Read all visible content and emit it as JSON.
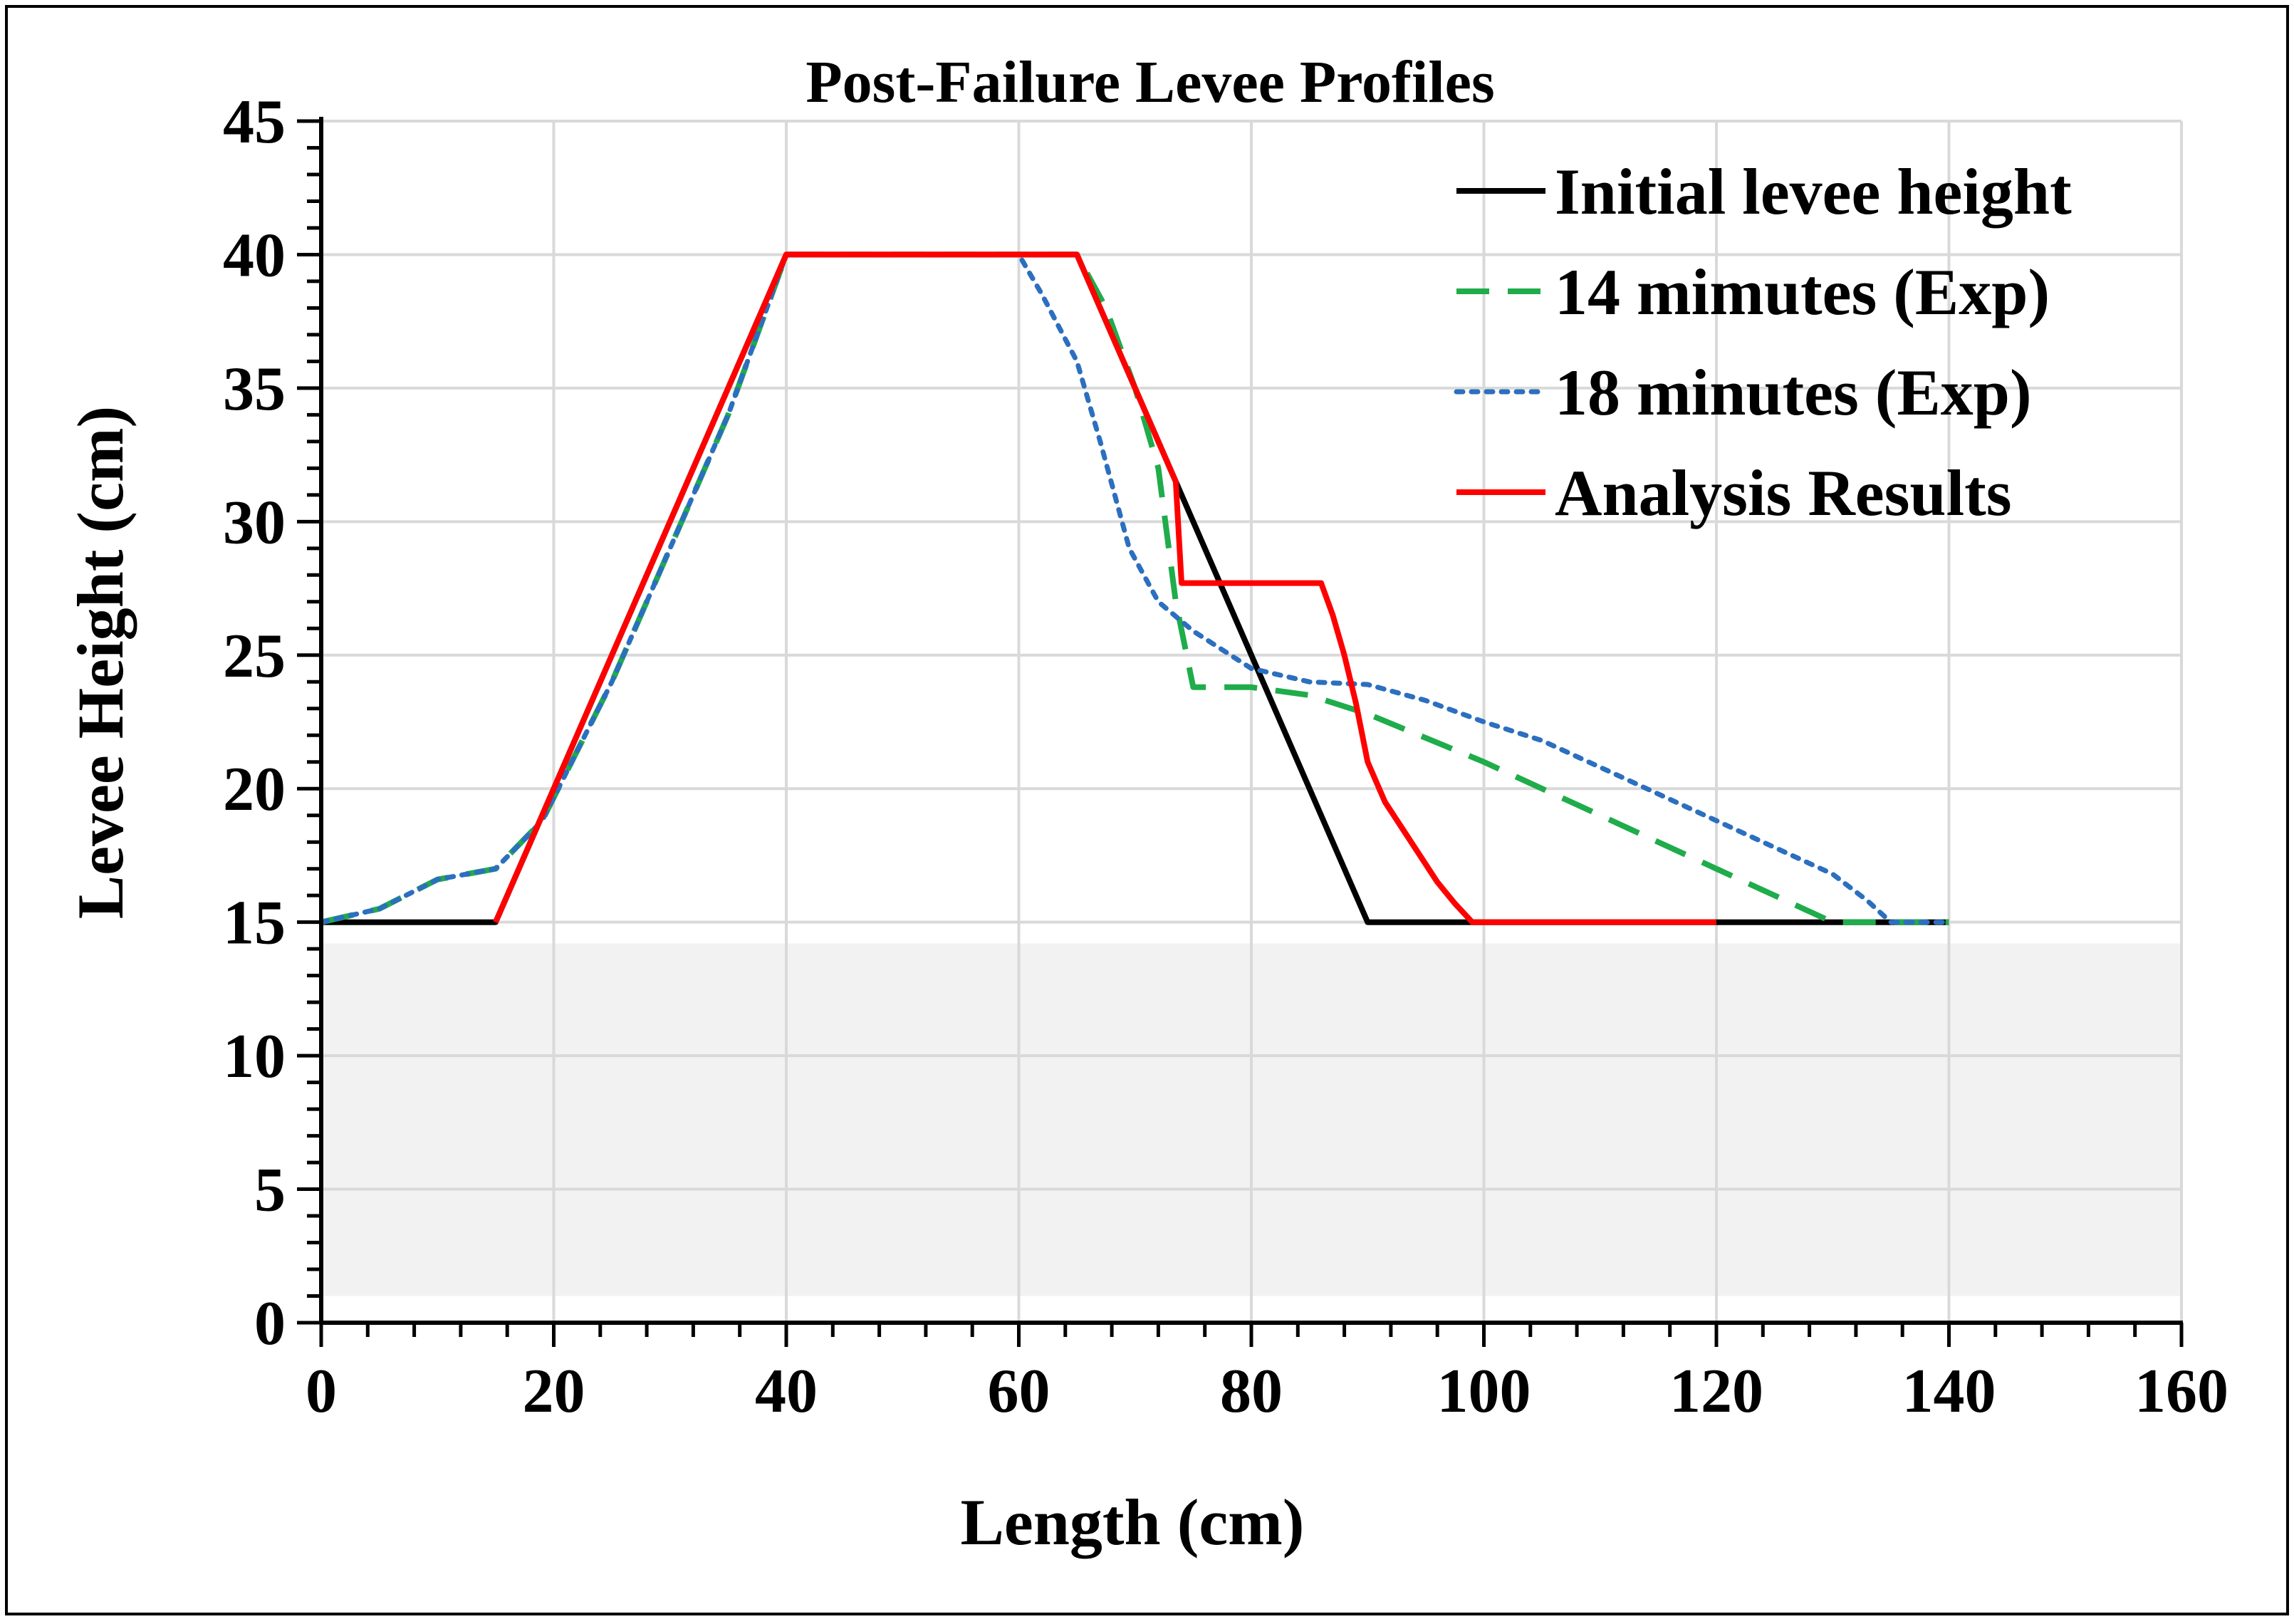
{
  "chart_data": {
    "type": "line",
    "title": "Post-Failure Levee Profiles",
    "xlabel": "Length (cm)",
    "ylabel": "Levee Height (cm)",
    "xlim": [
      0,
      160
    ],
    "ylim": [
      0,
      45
    ],
    "xticks": [
      0,
      20,
      40,
      60,
      80,
      100,
      120,
      140,
      160
    ],
    "yticks": [
      0,
      5,
      10,
      15,
      20,
      25,
      30,
      35,
      40,
      45
    ],
    "x_tick_labels": [
      "0",
      "20",
      "40",
      "60",
      "80",
      "100",
      "120",
      "140",
      "160"
    ],
    "y_tick_labels": [
      "0",
      "5",
      "10",
      "15",
      "20",
      "25",
      "30",
      "35",
      "40",
      "45"
    ],
    "grid": true,
    "legend_position": "top-right",
    "shaded_region": {
      "x": [
        0,
        160
      ],
      "y": [
        1,
        14.2
      ],
      "color": "#f2f2f2"
    },
    "series": [
      {
        "name": "Initial levee height",
        "color": "#000000",
        "style": "solid",
        "points": [
          [
            0,
            15
          ],
          [
            15,
            15
          ],
          [
            40,
            40
          ],
          [
            65,
            40
          ],
          [
            90,
            15
          ],
          [
            140,
            15
          ]
        ]
      },
      {
        "name": "14 mimutes (Exp)",
        "color": "#1fac4b",
        "style": "dashed",
        "points": [
          [
            0,
            15
          ],
          [
            5,
            15.5
          ],
          [
            10,
            16.6
          ],
          [
            15,
            17
          ],
          [
            19,
            18.8
          ],
          [
            25,
            24
          ],
          [
            30,
            29
          ],
          [
            35,
            34
          ],
          [
            40,
            40
          ],
          [
            65,
            40
          ],
          [
            67.5,
            38
          ],
          [
            70,
            35
          ],
          [
            72,
            32
          ],
          [
            73.5,
            27
          ],
          [
            75,
            23.8
          ],
          [
            80,
            23.8
          ],
          [
            85,
            23.5
          ],
          [
            90,
            22.8
          ],
          [
            100,
            21
          ],
          [
            110,
            19
          ],
          [
            120,
            17
          ],
          [
            130,
            15
          ],
          [
            140,
            15
          ]
        ]
      },
      {
        "name": "18 minutes (Exp)",
        "color": "#2c6fbf",
        "style": "dotted",
        "points": [
          [
            0,
            15
          ],
          [
            5,
            15.5
          ],
          [
            10,
            16.6
          ],
          [
            15,
            17
          ],
          [
            19,
            18.8
          ],
          [
            25,
            24
          ],
          [
            30,
            29
          ],
          [
            35,
            34
          ],
          [
            40,
            40
          ],
          [
            60,
            40
          ],
          [
            62,
            38.5
          ],
          [
            65,
            36
          ],
          [
            67,
            33
          ],
          [
            69.5,
            29
          ],
          [
            72,
            27
          ],
          [
            75,
            25.9
          ],
          [
            80,
            24.5
          ],
          [
            85,
            24
          ],
          [
            90,
            23.9
          ],
          [
            95,
            23.3
          ],
          [
            100,
            22.5
          ],
          [
            105,
            21.8
          ],
          [
            110,
            20.8
          ],
          [
            115,
            19.8
          ],
          [
            120,
            18.8
          ],
          [
            125,
            17.8
          ],
          [
            130,
            16.8
          ],
          [
            133,
            15.8
          ],
          [
            135,
            15
          ],
          [
            140,
            15
          ]
        ]
      },
      {
        "name": "Analysis Results",
        "color": "#ff0000",
        "style": "solid",
        "points": [
          [
            15,
            15
          ],
          [
            40,
            40
          ],
          [
            65,
            40
          ],
          [
            73.5,
            31.5
          ],
          [
            74,
            27.7
          ],
          [
            86,
            27.7
          ],
          [
            87,
            26.5
          ],
          [
            88,
            25
          ],
          [
            89,
            23.2
          ],
          [
            90,
            21
          ],
          [
            91.5,
            19.5
          ],
          [
            93,
            18.5
          ],
          [
            94.5,
            17.5
          ],
          [
            96,
            16.5
          ],
          [
            97.5,
            15.7
          ],
          [
            99,
            15
          ],
          [
            120,
            15
          ]
        ]
      }
    ]
  }
}
